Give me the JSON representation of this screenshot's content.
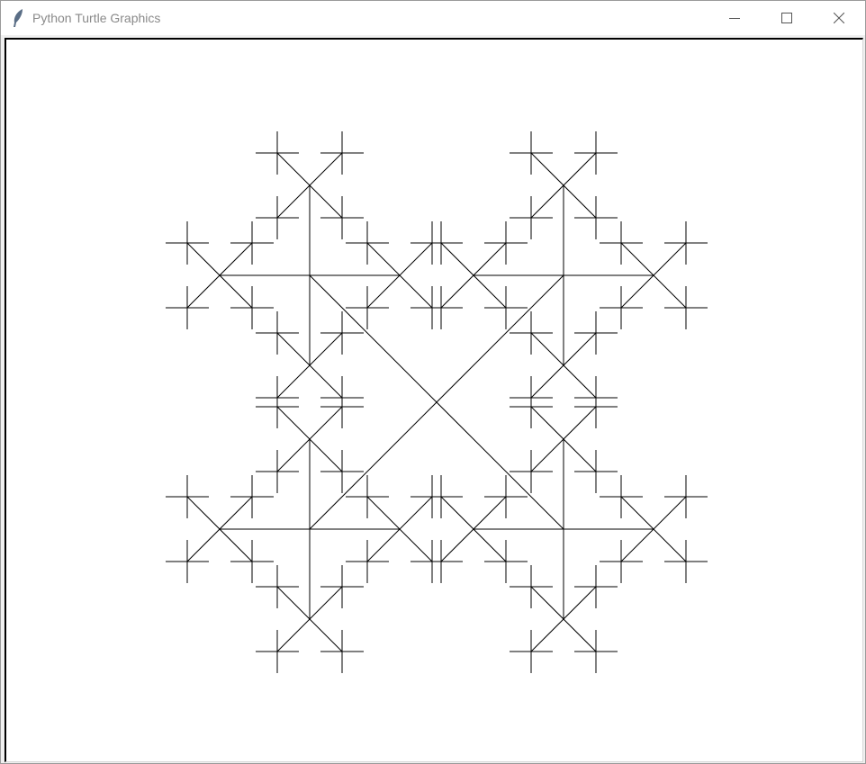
{
  "window": {
    "title": "Python Turtle Graphics",
    "app_icon": "feather-icon",
    "controls": [
      "minimize-icon",
      "maximize-icon",
      "close-icon"
    ]
  },
  "canvas": {
    "drawing": "H-tree style recursive cross fractal, black strokes on white",
    "stroke_color": "#000000",
    "background": "#ffffff"
  }
}
